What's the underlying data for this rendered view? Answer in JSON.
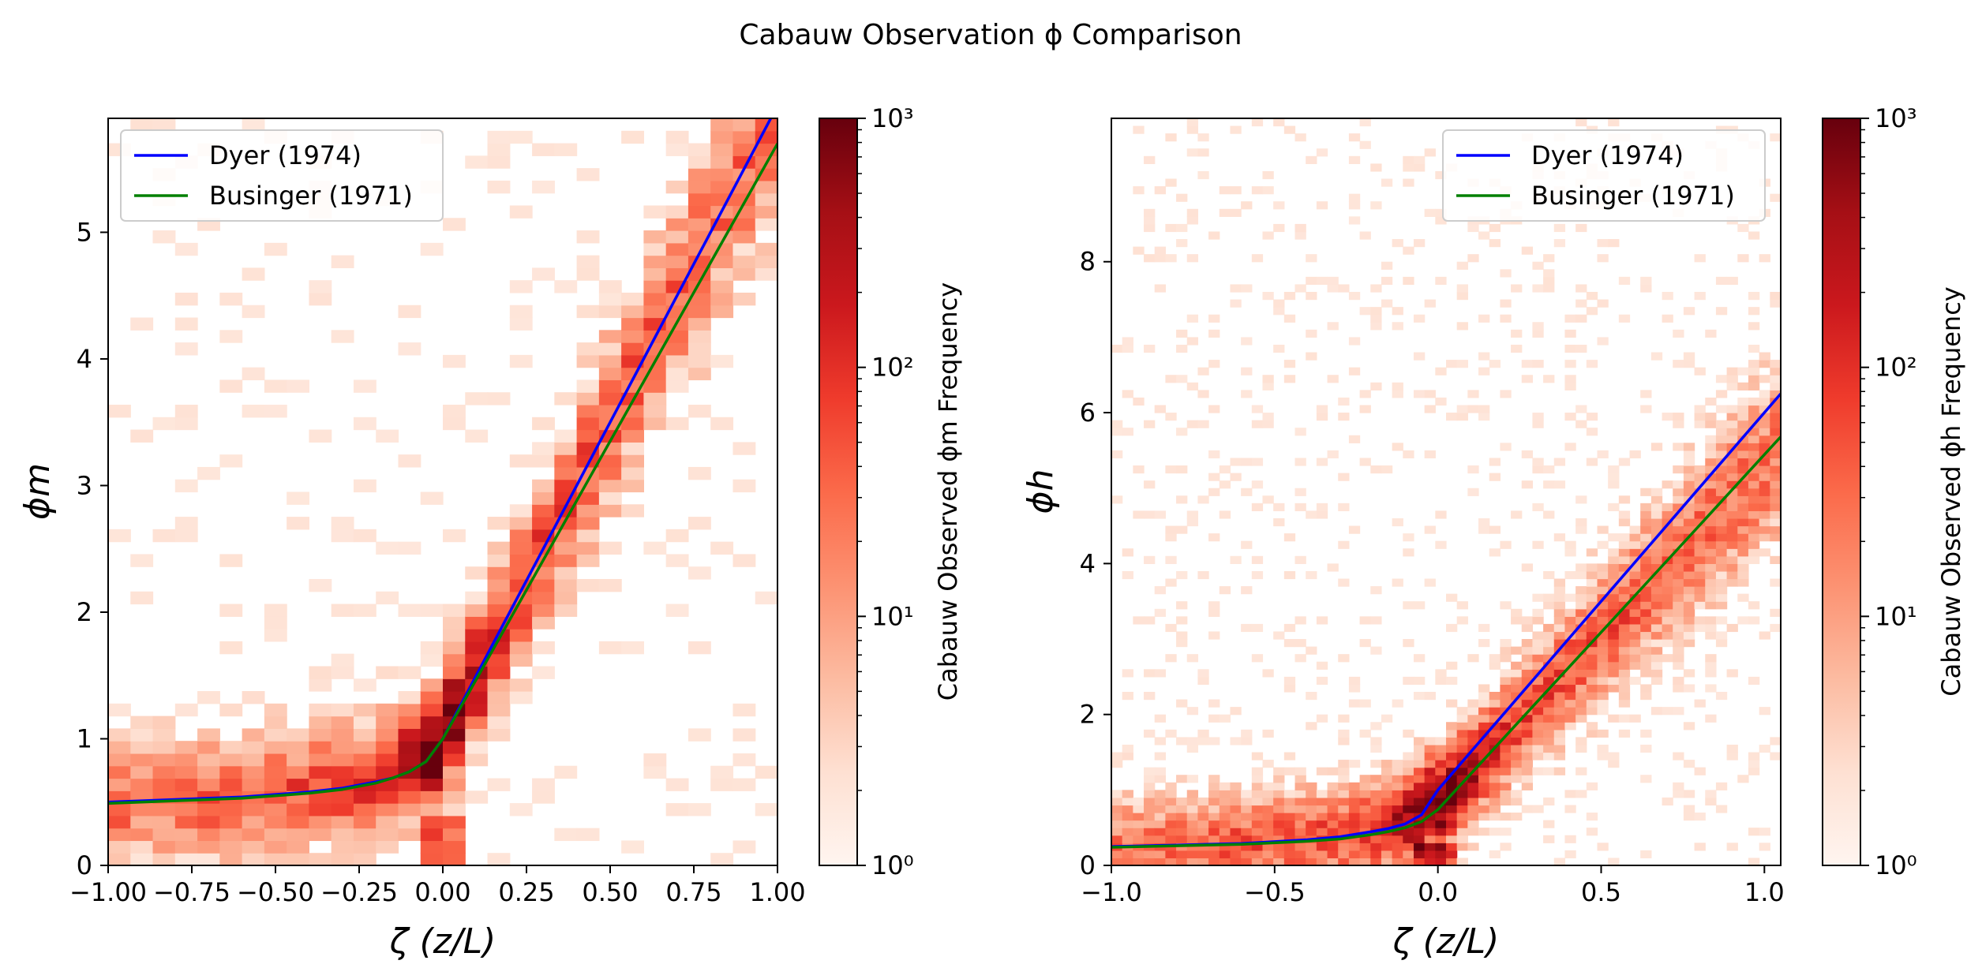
{
  "figure": {
    "suptitle": "Cabauw Observation ϕ Comparison"
  },
  "colors": {
    "dyer": "#0000ff",
    "businger": "#008000",
    "cmap": [
      "#fff5f0",
      "#fee0d2",
      "#fcbba1",
      "#fc9272",
      "#fb6a4a",
      "#ef3b2c",
      "#cb181d",
      "#a50f15",
      "#67000d"
    ]
  },
  "chart_data": [
    {
      "type": "heatmap",
      "panel": "left",
      "title": "",
      "xlabel": "ζ (z/L)",
      "ylabel": "ϕm",
      "xlim": [
        -1.0,
        1.0
      ],
      "ylim": [
        0,
        5.9
      ],
      "x_ticks": [
        -1.0,
        -0.75,
        -0.5,
        -0.25,
        0.0,
        0.25,
        0.5,
        0.75,
        1.0
      ],
      "x_tick_labels": [
        "−1.00",
        "−0.75",
        "−0.50",
        "−0.25",
        "0.00",
        "0.25",
        "0.50",
        "0.75",
        "1.00"
      ],
      "y_ticks": [
        0,
        1,
        2,
        3,
        4,
        5
      ],
      "y_tick_labels": [
        "0",
        "1",
        "2",
        "3",
        "4",
        "5"
      ],
      "grid": false,
      "legend_position": "upper-left",
      "series": [
        {
          "name": "Dyer (1974)",
          "color": "#0000ff",
          "x": [
            -1.0,
            -0.8,
            -0.6,
            -0.4,
            -0.3,
            -0.2,
            -0.15,
            -0.1,
            -0.05,
            0.0,
            0.1,
            0.2,
            0.4,
            0.6,
            0.8,
            1.0
          ],
          "y": [
            0.5,
            0.52,
            0.54,
            0.58,
            0.61,
            0.66,
            0.69,
            0.74,
            0.82,
            1.0,
            1.5,
            2.0,
            3.0,
            4.0,
            5.0,
            6.0
          ]
        },
        {
          "name": "Businger (1971)",
          "color": "#008000",
          "x": [
            -1.0,
            -0.8,
            -0.6,
            -0.4,
            -0.3,
            -0.2,
            -0.15,
            -0.1,
            -0.05,
            0.0,
            0.1,
            0.2,
            0.4,
            0.6,
            0.8,
            1.0
          ],
          "y": [
            0.49,
            0.51,
            0.53,
            0.57,
            0.6,
            0.65,
            0.69,
            0.74,
            0.82,
            1.0,
            1.47,
            1.94,
            2.88,
            3.82,
            4.76,
            5.7
          ]
        }
      ],
      "colorbar": {
        "label": "Cabauw Observed ϕm Frequency",
        "scale": "log",
        "range": [
          1,
          1000
        ],
        "tick_labels": [
          "10⁰",
          "10¹",
          "10²",
          "10³"
        ]
      }
    },
    {
      "type": "heatmap",
      "panel": "right",
      "title": "",
      "xlabel": "ζ (z/L)",
      "ylabel": "ϕh",
      "xlim": [
        -1.0,
        1.05
      ],
      "ylim": [
        0,
        9.9
      ],
      "x_ticks": [
        -1.0,
        -0.5,
        0.0,
        0.5,
        1.0
      ],
      "x_tick_labels": [
        "−1.0",
        "−0.5",
        "0.0",
        "0.5",
        "1.0"
      ],
      "y_ticks": [
        0,
        2,
        4,
        6,
        8
      ],
      "y_tick_labels": [
        "0",
        "2",
        "4",
        "6",
        "8"
      ],
      "grid": false,
      "legend_position": "upper-right",
      "series": [
        {
          "name": "Dyer (1974)",
          "color": "#0000ff",
          "x": [
            -1.0,
            -0.8,
            -0.6,
            -0.4,
            -0.3,
            -0.2,
            -0.15,
            -0.1,
            -0.05,
            0.0,
            0.1,
            0.2,
            0.4,
            0.6,
            0.8,
            1.05
          ],
          "y": [
            0.25,
            0.27,
            0.29,
            0.34,
            0.38,
            0.45,
            0.49,
            0.55,
            0.67,
            1.0,
            1.5,
            2.0,
            3.0,
            4.0,
            5.0,
            6.25
          ]
        },
        {
          "name": "Businger (1971)",
          "color": "#008000",
          "x": [
            -1.0,
            -0.8,
            -0.6,
            -0.4,
            -0.3,
            -0.2,
            -0.15,
            -0.1,
            -0.05,
            0.0,
            0.1,
            0.2,
            0.4,
            0.6,
            0.8,
            1.05
          ],
          "y": [
            0.24,
            0.26,
            0.28,
            0.32,
            0.35,
            0.41,
            0.45,
            0.5,
            0.58,
            0.74,
            1.21,
            1.68,
            2.62,
            3.56,
            4.5,
            5.68
          ]
        }
      ],
      "colorbar": {
        "label": "Cabauw Observed ϕh Frequency",
        "scale": "log",
        "range": [
          1,
          1000
        ],
        "tick_labels": [
          "10⁰",
          "10¹",
          "10²",
          "10³"
        ]
      }
    }
  ]
}
